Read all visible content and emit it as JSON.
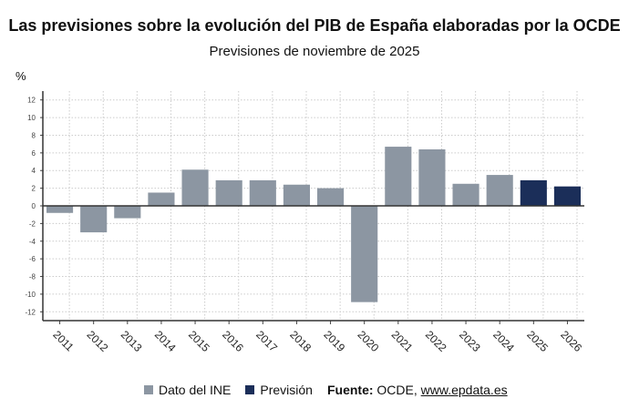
{
  "title": "Las previsiones sobre la evolución del PIB de España elaboradas por la OCDE",
  "subtitle": "Previsiones de noviembre de 2025",
  "source_label": "Fuente:",
  "source_text": "OCDE, ",
  "source_link": "www.epdata.es",
  "chart_data": {
    "type": "bar",
    "ylabel": "%",
    "ylim": [
      -13,
      13
    ],
    "yticks": [
      -12,
      -10,
      -8,
      -6,
      -4,
      -2,
      0,
      2,
      4,
      6,
      8,
      10,
      12
    ],
    "grid": true,
    "legend_position": "bottom",
    "categories": [
      "2011",
      "2012",
      "2013",
      "2014",
      "2015",
      "2016",
      "2017",
      "2018",
      "2019",
      "2020",
      "2021",
      "2022",
      "2023",
      "2024",
      "2025",
      "2026"
    ],
    "values": [
      -0.8,
      -3.0,
      -1.4,
      1.5,
      4.1,
      2.9,
      2.9,
      2.4,
      2.0,
      -10.9,
      6.7,
      6.4,
      2.5,
      3.5,
      2.9,
      2.2
    ],
    "series_index": [
      0,
      0,
      0,
      0,
      0,
      0,
      0,
      0,
      0,
      0,
      0,
      0,
      0,
      0,
      1,
      1
    ],
    "series": [
      {
        "name": "Dato del INE",
        "color": "#8c96a2"
      },
      {
        "name": "Previsión",
        "color": "#1b2e59"
      }
    ]
  }
}
